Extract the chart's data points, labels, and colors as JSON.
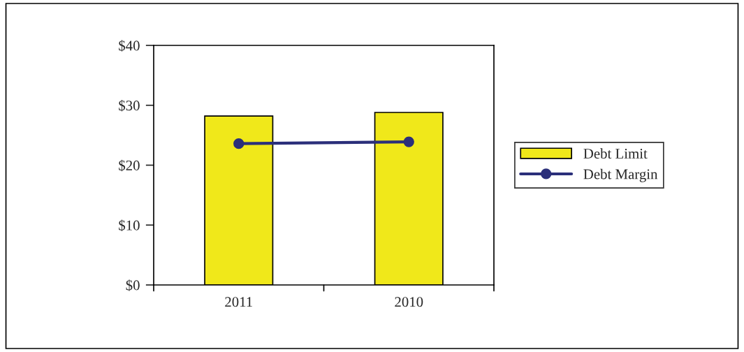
{
  "chart_data": {
    "type": "bar",
    "categories": [
      "2011",
      "2010"
    ],
    "series": [
      {
        "name": "Debt Limit",
        "color": "#f0e81a",
        "values": [
          28.2,
          28.8
        ]
      },
      {
        "name": "Debt Margin",
        "type": "line",
        "color": "#2b2f7a",
        "values": [
          23.6,
          23.9
        ]
      }
    ],
    "ylim": [
      0,
      40
    ],
    "yticks": [
      {
        "value": 0,
        "label": "$0"
      },
      {
        "value": 10,
        "label": "$10"
      },
      {
        "value": 20,
        "label": "$20"
      },
      {
        "value": 30,
        "label": "$30"
      },
      {
        "value": 40,
        "label": "$40"
      }
    ],
    "grid": false,
    "legend": "right",
    "marker": "circle",
    "line_style": "solid"
  }
}
